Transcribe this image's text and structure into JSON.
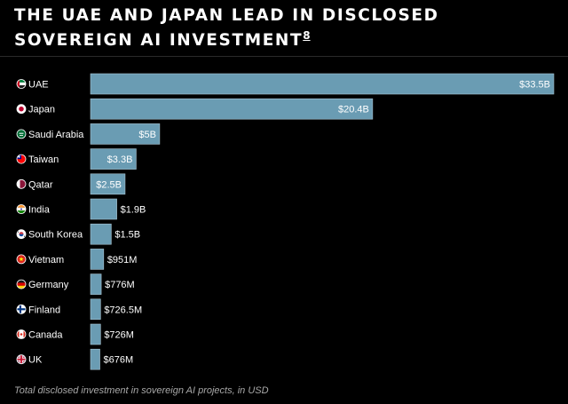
{
  "page": {
    "title": "THE UAE AND JAPAN LEAD IN DISCLOSED SOVEREIGN AI INVESTMENT",
    "footnote_ref": "8",
    "caption": "Total disclosed investment in sovereign AI projects, in USD"
  },
  "colors": {
    "background": "#000000",
    "bar": "#6a9cb3",
    "bar_stroke": "#a9c6d4",
    "text": "#ffffff",
    "caption": "#a8a8a8"
  },
  "chart_data": {
    "type": "bar",
    "orientation": "horizontal",
    "title": "THE UAE AND JAPAN LEAD IN DISCLOSED SOVEREIGN AI INVESTMENT",
    "xlabel": "Total disclosed investment in sovereign AI projects, in USD",
    "ylabel": "",
    "unit": "USD billions",
    "xlim": [
      0,
      33.5
    ],
    "grid": false,
    "categories": [
      "UAE",
      "Japan",
      "Saudi Arabia",
      "Taiwan",
      "Qatar",
      "India",
      "South Korea",
      "Vietnam",
      "Germany",
      "Finland",
      "Canada",
      "UK"
    ],
    "values": [
      33.5,
      20.4,
      5,
      3.3,
      2.5,
      1.9,
      1.5,
      0.951,
      0.776,
      0.7265,
      0.726,
      0.676
    ],
    "value_labels": [
      "$33.5B",
      "$20.4B",
      "$5B",
      "$3.3B",
      "$2.5B",
      "$1.9B",
      "$1.5B",
      "$951M",
      "$776M",
      "$726.5M",
      "$726M",
      "$676M"
    ],
    "flag_icons": [
      "uae-flag-icon",
      "japan-flag-icon",
      "saudi-arabia-flag-icon",
      "taiwan-flag-icon",
      "qatar-flag-icon",
      "india-flag-icon",
      "south-korea-flag-icon",
      "vietnam-flag-icon",
      "germany-flag-icon",
      "finland-flag-icon",
      "canada-flag-icon",
      "uk-flag-icon"
    ]
  }
}
